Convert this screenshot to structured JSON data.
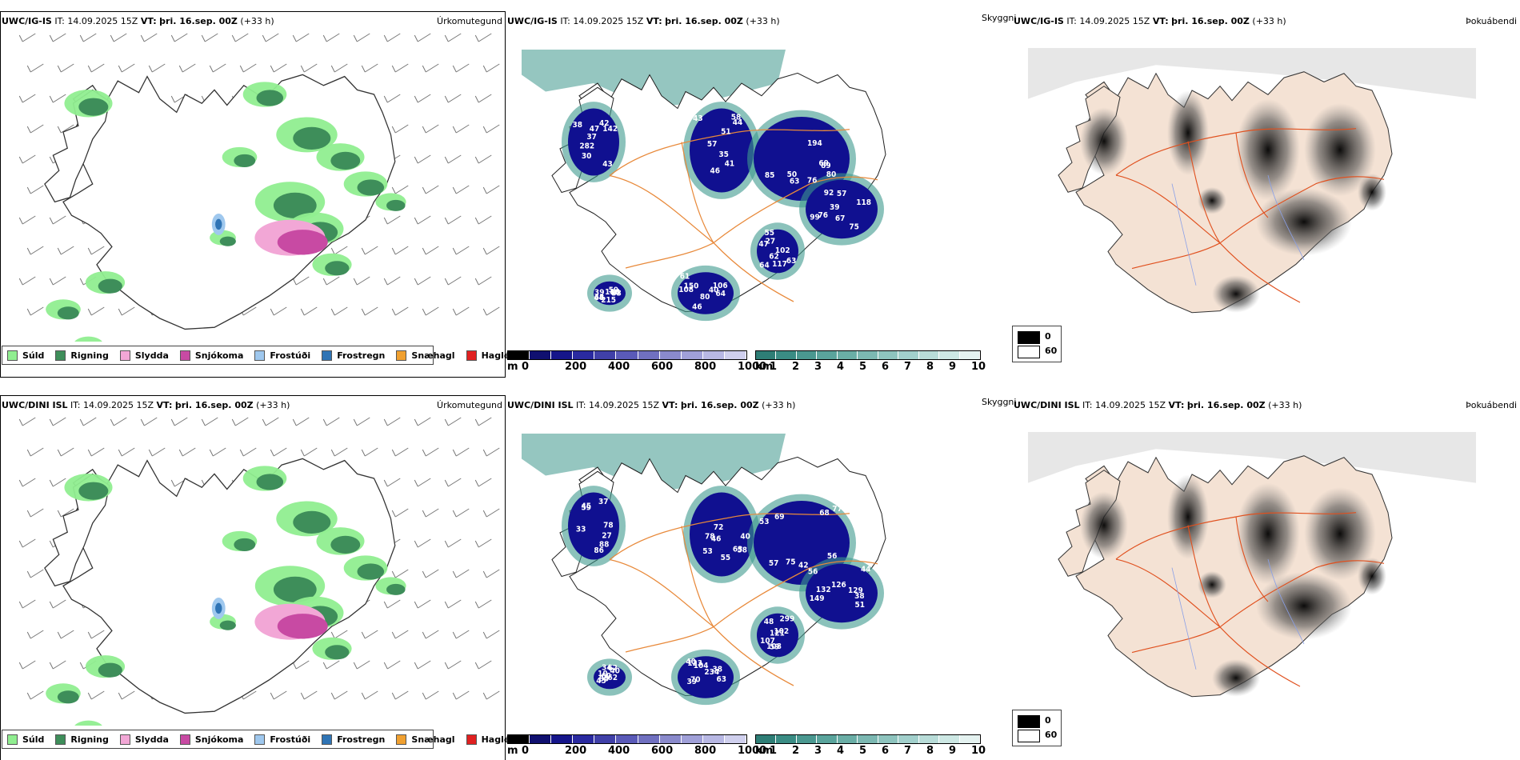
{
  "colors": {
    "suld": "#90ee90",
    "rigning": "#3e8e5a",
    "slydda": "#f2a7d6",
    "snjokoma": "#c84aa3",
    "frostudi": "#9fc8ee",
    "frostregn": "#2f74b5",
    "snaehagl": "#f0a030",
    "haglel": "#e02020",
    "cloud_dark": "#101090",
    "cloud_teal": "#3e9a8e",
    "land": "#f4e2d4",
    "road": "#e0501e"
  },
  "rows": [
    {
      "precip": {
        "model": "UWC/IG-IS",
        "it_label": "IT:",
        "it_value": "14.09.2025 15Z",
        "vt_label": "VT:",
        "vt_value": "þri. 16.sep. 00Z",
        "lead": "(+33 h)",
        "tag": "Úrkomutegund"
      },
      "cloud": {
        "model": "UWC/IG-IS",
        "it_label": "IT:",
        "it_value": "14.09.2025 15Z",
        "vt_label": "VT:",
        "vt_value": "þri. 16.sep. 00Z",
        "lead": "(+33 h)",
        "tag": "Skyggni",
        "numbers": [
          "142",
          "38",
          "42",
          "30",
          "282",
          "43",
          "47",
          "37",
          "51",
          "44",
          "58",
          "57",
          "35",
          "41",
          "46",
          "43",
          "63",
          "85",
          "76",
          "50",
          "69",
          "194",
          "80",
          "89",
          "67",
          "92",
          "57",
          "39",
          "118",
          "76",
          "75",
          "99",
          "150",
          "106",
          "108",
          "64",
          "61",
          "46",
          "80",
          "40",
          "39",
          "215",
          "68",
          "33",
          "44",
          "114",
          "59",
          "66",
          "117",
          "47",
          "102",
          "27",
          "62",
          "55",
          "64",
          "63"
        ]
      },
      "vis": {
        "model": "UWC/IG-IS",
        "it_label": "IT:",
        "it_value": "14.09.2025 15Z",
        "vt_label": "VT:",
        "vt_value": "þri. 16.sep. 00Z",
        "lead": "(+33 h)",
        "tag": "Þokuábendi"
      }
    },
    {
      "precip": {
        "model": "UWC/DINI ISL",
        "it_label": "IT:",
        "it_value": "14.09.2025 15Z",
        "vt_label": "VT:",
        "vt_value": "þri. 16.sep. 00Z",
        "lead": "(+33 h)",
        "tag": "Úrkomutegund"
      },
      "cloud": {
        "model": "UWC/DINI ISL",
        "it_label": "IT:",
        "it_value": "14.09.2025 15Z",
        "vt_label": "VT:",
        "vt_value": "þri. 16.sep. 00Z",
        "lead": "(+33 h)",
        "tag": "Skyggni",
        "numbers": [
          "37",
          "45",
          "27",
          "33",
          "59",
          "78",
          "86",
          "88",
          "72",
          "46",
          "40",
          "58",
          "63",
          "78",
          "55",
          "53",
          "53",
          "68",
          "77",
          "42",
          "56",
          "75",
          "57",
          "69",
          "129",
          "132",
          "149",
          "126",
          "56",
          "38",
          "51",
          "44",
          "38",
          "40",
          "70",
          "123",
          "63",
          "104",
          "234",
          "39",
          "62",
          "10",
          "262",
          "85",
          "60",
          "45",
          "40",
          "34",
          "121",
          "48",
          "102",
          "299",
          "107",
          "108",
          "59"
        ]
      },
      "vis": {
        "model": "UWC/DINI ISL",
        "it_label": "IT:",
        "it_value": "14.09.2025 15Z",
        "vt_label": "VT:",
        "vt_value": "þri. 16.sep. 00Z",
        "lead": "(+33 h)",
        "tag": "Þokuábendi"
      }
    }
  ],
  "precip_legend": [
    {
      "label": "Súld",
      "color": "#90ee90"
    },
    {
      "label": "Rigning",
      "color": "#3e8e5a"
    },
    {
      "label": "Slydda",
      "color": "#f2a7d6"
    },
    {
      "label": "Snjókoma",
      "color": "#c84aa3"
    },
    {
      "label": "Frostúði",
      "color": "#9fc8ee"
    },
    {
      "label": "Frostregn",
      "color": "#2f74b5"
    },
    {
      "label": "Snæhagl",
      "color": "#f0a030"
    },
    {
      "label": "Haglél",
      "color": "#e02020"
    }
  ],
  "ceiling_bar": {
    "unit": "m",
    "ticks": [
      "0",
      "200",
      "400",
      "600",
      "800",
      "1000"
    ],
    "colors": [
      "#000000",
      "#101070",
      "#15158a",
      "#2a2aa0",
      "#4040a8",
      "#5a5ab8",
      "#7070c0",
      "#8a8acc",
      "#a0a0d8",
      "#b8b8e4",
      "#d0d0ee"
    ]
  },
  "visibility_bar": {
    "unit": "km",
    "ticks": [
      "1",
      "2",
      "3",
      "4",
      "5",
      "6",
      "7",
      "8",
      "9",
      "10"
    ],
    "colors": [
      "#2e7e76",
      "#3a8c84",
      "#4a9890",
      "#5aa49c",
      "#6aaea6",
      "#7cb8b2",
      "#8ec4be",
      "#a2d0cc",
      "#b8dcd8",
      "#cde8e4",
      "#e4f2f0"
    ]
  },
  "fog_legend": {
    "dark_value": "0",
    "light_value": "60"
  }
}
